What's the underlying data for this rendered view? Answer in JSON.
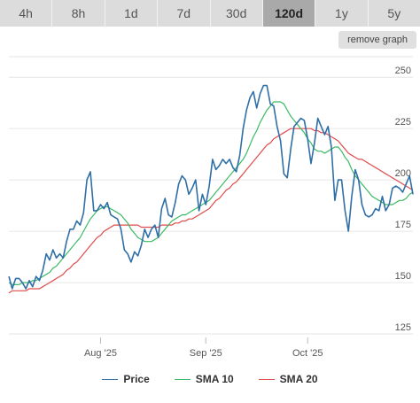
{
  "tabs": [
    "4h",
    "8h",
    "1d",
    "7d",
    "30d",
    "120d",
    "1y",
    "5y"
  ],
  "active_tab": "120d",
  "remove_graph_label": "remove graph",
  "chart_data": {
    "type": "line",
    "title": "",
    "xlabel": "",
    "ylabel": "",
    "ylim": [
      122,
      260
    ],
    "y_ticks": [
      125,
      150,
      175,
      200,
      225,
      250
    ],
    "x_range": [
      "2025-07-05",
      "2025-11-01"
    ],
    "x_ticks": [
      {
        "date": "2025-08-01",
        "label": "Aug '25"
      },
      {
        "date": "2025-09-01",
        "label": "Sep '25"
      },
      {
        "date": "2025-10-01",
        "label": "Oct '25"
      }
    ],
    "grid": true,
    "legend_position": "bottom",
    "x": [
      "2025-07-05",
      "2025-07-06",
      "2025-07-07",
      "2025-07-08",
      "2025-07-09",
      "2025-07-10",
      "2025-07-11",
      "2025-07-12",
      "2025-07-13",
      "2025-07-14",
      "2025-07-15",
      "2025-07-16",
      "2025-07-17",
      "2025-07-18",
      "2025-07-19",
      "2025-07-20",
      "2025-07-21",
      "2025-07-22",
      "2025-07-23",
      "2025-07-24",
      "2025-07-25",
      "2025-07-26",
      "2025-07-27",
      "2025-07-28",
      "2025-07-29",
      "2025-07-30",
      "2025-07-31",
      "2025-08-01",
      "2025-08-02",
      "2025-08-03",
      "2025-08-04",
      "2025-08-05",
      "2025-08-06",
      "2025-08-07",
      "2025-08-08",
      "2025-08-09",
      "2025-08-10",
      "2025-08-11",
      "2025-08-12",
      "2025-08-13",
      "2025-08-14",
      "2025-08-15",
      "2025-08-16",
      "2025-08-17",
      "2025-08-18",
      "2025-08-19",
      "2025-08-20",
      "2025-08-21",
      "2025-08-22",
      "2025-08-23",
      "2025-08-24",
      "2025-08-25",
      "2025-08-26",
      "2025-08-27",
      "2025-08-28",
      "2025-08-29",
      "2025-08-30",
      "2025-08-31",
      "2025-09-01",
      "2025-09-02",
      "2025-09-03",
      "2025-09-04",
      "2025-09-05",
      "2025-09-06",
      "2025-09-07",
      "2025-09-08",
      "2025-09-09",
      "2025-09-10",
      "2025-09-11",
      "2025-09-12",
      "2025-09-13",
      "2025-09-14",
      "2025-09-15",
      "2025-09-16",
      "2025-09-17",
      "2025-09-18",
      "2025-09-19",
      "2025-09-20",
      "2025-09-21",
      "2025-09-22",
      "2025-09-23",
      "2025-09-24",
      "2025-09-25",
      "2025-09-26",
      "2025-09-27",
      "2025-09-28",
      "2025-09-29",
      "2025-09-30",
      "2025-10-01",
      "2025-10-02",
      "2025-10-03",
      "2025-10-04",
      "2025-10-05",
      "2025-10-06",
      "2025-10-07",
      "2025-10-08",
      "2025-10-09",
      "2025-10-10",
      "2025-10-11",
      "2025-10-12",
      "2025-10-13",
      "2025-10-14",
      "2025-10-15",
      "2025-10-16",
      "2025-10-17",
      "2025-10-18",
      "2025-10-19",
      "2025-10-20",
      "2025-10-21",
      "2025-10-22",
      "2025-10-23",
      "2025-10-24",
      "2025-10-25",
      "2025-10-26",
      "2025-10-27",
      "2025-10-28",
      "2025-10-29",
      "2025-10-30",
      "2025-10-31",
      "2025-11-01"
    ],
    "series": [
      {
        "name": "Price",
        "color": "#2f6fa7",
        "values": [
          153,
          147,
          152,
          152,
          150,
          147,
          151,
          148,
          153,
          151,
          156,
          164,
          161,
          166,
          162,
          164,
          162,
          170,
          176,
          176,
          180,
          178,
          184,
          200,
          204,
          185,
          185,
          188,
          186,
          189,
          183,
          182,
          181,
          176,
          166,
          164,
          160,
          165,
          163,
          168,
          176,
          172,
          176,
          178,
          172,
          186,
          191,
          183,
          182,
          189,
          198,
          202,
          200,
          193,
          196,
          200,
          185,
          193,
          188,
          197,
          210,
          205,
          207,
          210,
          208,
          210,
          206,
          204,
          212,
          225,
          234,
          240,
          243,
          235,
          242,
          246,
          246,
          237,
          236,
          226,
          219,
          203,
          201,
          215,
          226,
          228,
          230,
          229,
          220,
          208,
          218,
          230,
          226,
          222,
          226,
          216,
          190,
          200,
          200,
          185,
          175,
          192,
          205,
          200,
          188,
          183,
          182,
          183,
          186,
          185,
          192,
          185,
          188,
          196,
          197,
          196,
          194,
          198,
          202,
          193
        ]
      },
      {
        "name": "SMA 10",
        "color": "#3cba64",
        "values": [
          150,
          149,
          149,
          149,
          150,
          150,
          150,
          151,
          151,
          152,
          153,
          154,
          155,
          157,
          158,
          160,
          162,
          164,
          166,
          168,
          170,
          172,
          175,
          178,
          181,
          183,
          185,
          186,
          187,
          187,
          186,
          185,
          184,
          183,
          181,
          179,
          176,
          174,
          172,
          171,
          170,
          170,
          170,
          171,
          172,
          174,
          176,
          178,
          180,
          181,
          182,
          183,
          183,
          184,
          185,
          186,
          187,
          188,
          189,
          190,
          192,
          194,
          196,
          198,
          200,
          202,
          204,
          206,
          208,
          210,
          213,
          217,
          221,
          224,
          228,
          231,
          234,
          236,
          238,
          238,
          238,
          237,
          234,
          231,
          229,
          227,
          225,
          223,
          220,
          218,
          215,
          214,
          214,
          213,
          214,
          215,
          216,
          216,
          214,
          211,
          209,
          205,
          202,
          200,
          198,
          196,
          194,
          192,
          191,
          190,
          189,
          188,
          188,
          188,
          189,
          190,
          190,
          191,
          193,
          194
        ]
      },
      {
        "name": "SMA 20",
        "color": "#e04b4b",
        "values": [
          145,
          146,
          146,
          146,
          146,
          146,
          147,
          147,
          147,
          147,
          148,
          149,
          150,
          151,
          152,
          153,
          154,
          156,
          157,
          159,
          160,
          162,
          164,
          166,
          168,
          170,
          172,
          173,
          175,
          176,
          177,
          178,
          178,
          178,
          178,
          178,
          178,
          178,
          178,
          177,
          177,
          177,
          177,
          177,
          177,
          178,
          178,
          178,
          178,
          179,
          179,
          180,
          180,
          181,
          181,
          182,
          183,
          184,
          185,
          186,
          188,
          190,
          191,
          193,
          195,
          196,
          198,
          199,
          201,
          203,
          205,
          207,
          209,
          211,
          213,
          215,
          217,
          218,
          220,
          221,
          222,
          223,
          224,
          225,
          225,
          225,
          225,
          225,
          225,
          225,
          224,
          224,
          223,
          223,
          222,
          221,
          220,
          219,
          217,
          215,
          213,
          212,
          211,
          210,
          210,
          209,
          208,
          207,
          206,
          205,
          204,
          203,
          202,
          201,
          200,
          199,
          198,
          197,
          196,
          195
        ]
      }
    ]
  }
}
